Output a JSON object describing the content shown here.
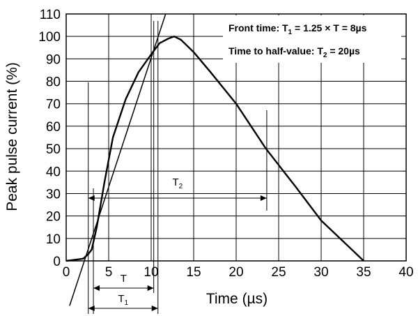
{
  "chart_data": {
    "type": "line",
    "xlabel": "Time (µs)",
    "ylabel": "Peak pulse current (%)",
    "xlim": [
      0,
      40
    ],
    "ylim": [
      0,
      110
    ],
    "x_ticks": [
      0,
      5,
      10,
      15,
      20,
      25,
      30,
      35,
      40
    ],
    "y_ticks": [
      0,
      10,
      20,
      30,
      40,
      50,
      60,
      70,
      80,
      90,
      100,
      110
    ],
    "grid": true,
    "series": [
      {
        "x": [
          0,
          1,
          2,
          2.6,
          3.0,
          3.6,
          4.5,
          5.5,
          7,
          8.5,
          10,
          11,
          12,
          12.7,
          13.5,
          15,
          17,
          20,
          23.5,
          27,
          30,
          32.5,
          35
        ],
        "y": [
          0,
          0.5,
          1,
          3,
          5,
          15,
          35,
          55,
          72,
          84,
          92,
          97,
          99,
          100,
          98.5,
          93,
          84,
          70,
          50,
          33,
          18,
          9,
          0
        ]
      }
    ],
    "front_tangent": {
      "x": [
        0.4,
        11.7
      ],
      "y": [
        -20,
        110
      ]
    },
    "annotations": {
      "front_time": {
        "text": "Front time: T",
        "sub": "1",
        "rest": " = 1.25 × T = 8µs"
      },
      "half_value": {
        "text": "Time to half-value: T",
        "sub": "2",
        "rest": " = 20µs"
      }
    },
    "markers": {
      "T": {
        "label": "T",
        "from": 3.2,
        "to": 10.3
      },
      "T1": {
        "label": "T",
        "sub": "1",
        "from": 2.6,
        "to": 10.8
      },
      "T2": {
        "label": "T",
        "sub": "2",
        "from": 2.6,
        "to": 23.6
      }
    }
  }
}
